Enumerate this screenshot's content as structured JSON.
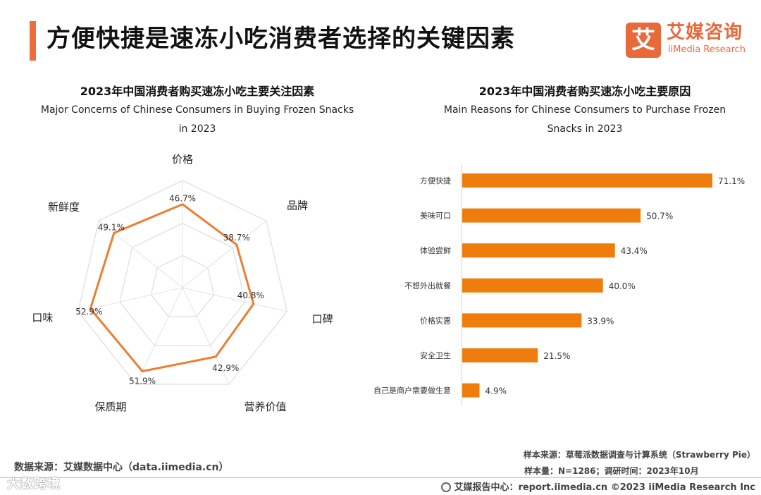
{
  "header": {
    "title": "方便快捷是速冻小吃消费者选择的关键因素",
    "logo_char": "艾",
    "logo_cn": "艾媒咨询",
    "logo_en": "iiMedia Research"
  },
  "left_chart": {
    "title": "2023年中国消费者购买速冻小吃主要关注因素",
    "subtitle_line1": "Major Concerns of Chinese Consumers in Buying Frozen Snacks",
    "subtitle_line2": "in 2023"
  },
  "right_chart": {
    "title": "2023年中国消费者购买速冻小吃主要原因",
    "subtitle_line1": "Main Reasons for Chinese Consumers to Purchase Frozen",
    "subtitle_line2": "Snacks in 2023"
  },
  "chart_data": [
    {
      "type": "radar",
      "title": "2023年中国消费者购买速冻小吃主要关注因素",
      "categories": [
        "价格",
        "品牌",
        "口碑",
        "营养价值",
        "保质期",
        "口味",
        "新鲜度"
      ],
      "values": [
        46.7,
        38.7,
        40.8,
        42.9,
        51.9,
        52.9,
        49.1
      ],
      "labels": [
        "46.7%",
        "38.7%",
        "40.8%",
        "42.9%",
        "51.9%",
        "52.9%",
        "49.1%"
      ],
      "range": [
        0,
        60
      ],
      "color": "#ee7d31"
    },
    {
      "type": "bar",
      "orientation": "horizontal",
      "title": "2023年中国消费者购买速冻小吃主要原因",
      "categories": [
        "方便快捷",
        "美味可口",
        "体验尝鲜",
        "不想外出就餐",
        "价格实惠",
        "安全卫生",
        "自己是商户需要做生意"
      ],
      "values": [
        71.1,
        50.7,
        43.4,
        40.0,
        33.9,
        21.5,
        4.9
      ],
      "labels": [
        "71.1%",
        "50.7%",
        "43.4%",
        "40.0%",
        "33.9%",
        "21.5%",
        "4.9%"
      ],
      "unit": "%",
      "color": "#ee7d0e"
    }
  ],
  "footer": {
    "source": "数据来源：艾媒数据中心（data.iimedia.cn）",
    "sample_source": "样本来源：草莓派数据调查与计算系统（Strawberry Pie）",
    "sample_size": "样本量：N=1286；调研时间：2023年10月",
    "report_center": "艾媒报告中心：report.iimedia.cn   ©2023  iiMedia Research  Inc",
    "watermark": "大数跨境"
  }
}
